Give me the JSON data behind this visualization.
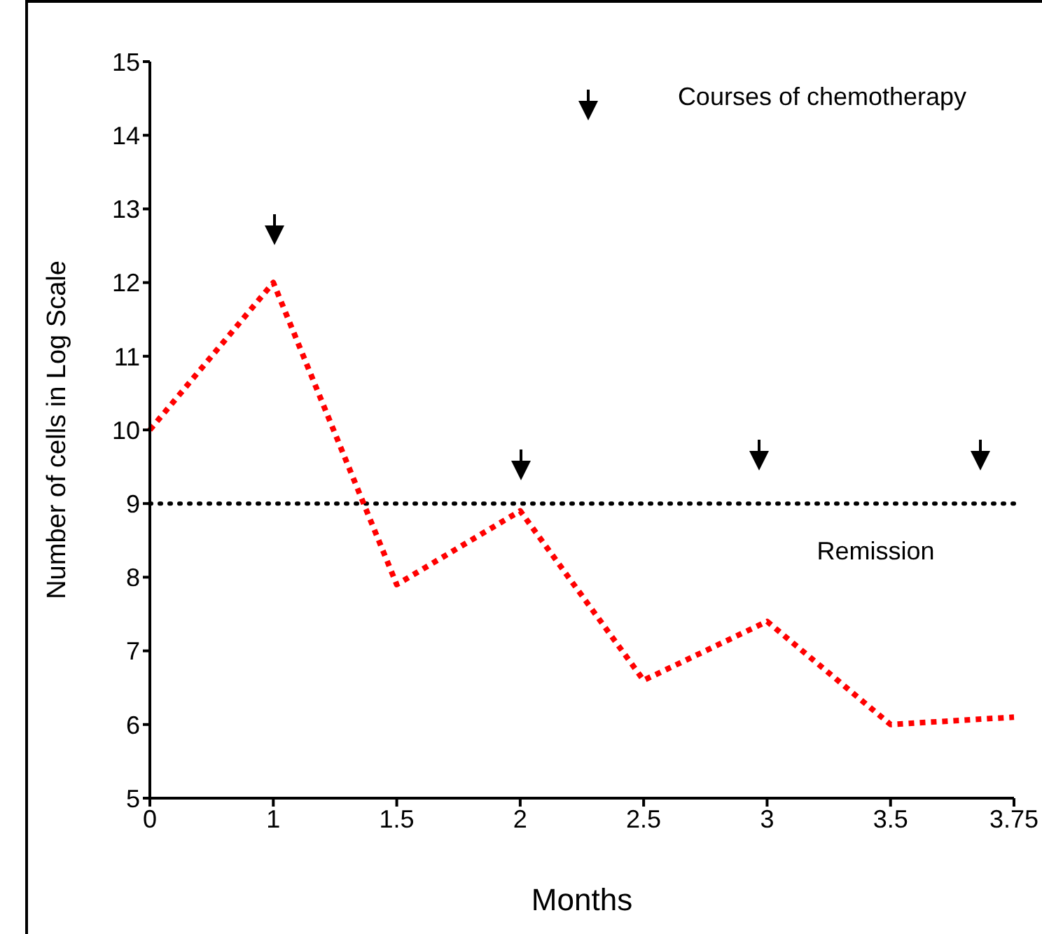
{
  "chart_data": {
    "type": "line",
    "xlabel": "Months",
    "ylabel": "Number of cells in Log Scale",
    "categories": [
      "0",
      "1",
      "1.5",
      "2",
      "2.5",
      "3",
      "3.5",
      "3.75"
    ],
    "series": [
      {
        "color": "#ff0000",
        "values": [
          10,
          12,
          7.9,
          8.9,
          6.6,
          7.4,
          6.0,
          6.1
        ]
      }
    ],
    "ylim": [
      5,
      15
    ],
    "yticks": [
      5,
      6,
      7,
      8,
      9,
      10,
      11,
      12,
      13,
      14,
      15
    ],
    "ref_lines": [
      {
        "axis": "y",
        "value": 9,
        "label": "Remission",
        "color": "#000000",
        "line_style": "dotted"
      }
    ],
    "annotations": [
      "Courses of chemotherapy"
    ],
    "marker": "none",
    "line_style": "dotted"
  }
}
